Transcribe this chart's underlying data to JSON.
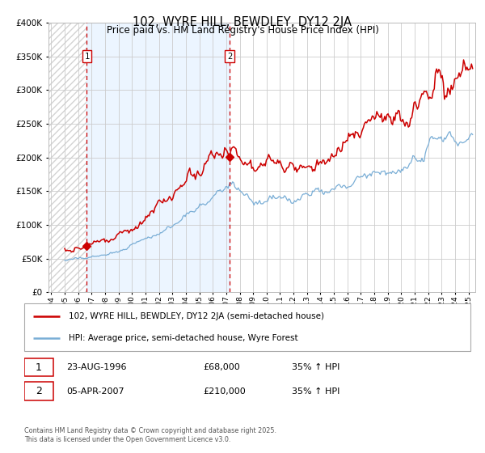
{
  "title": "102, WYRE HILL, BEWDLEY, DY12 2JA",
  "subtitle": "Price paid vs. HM Land Registry's House Price Index (HPI)",
  "legend_line1": "102, WYRE HILL, BEWDLEY, DY12 2JA (semi-detached house)",
  "legend_line2": "HPI: Average price, semi-detached house, Wyre Forest",
  "transaction1_date": "23-AUG-1996",
  "transaction1_price": "£68,000",
  "transaction1_hpi": "35% ↑ HPI",
  "transaction2_date": "05-APR-2007",
  "transaction2_price": "£210,000",
  "transaction2_hpi": "35% ↑ HPI",
  "footer": "Contains HM Land Registry data © Crown copyright and database right 2025.\nThis data is licensed under the Open Government Licence v3.0.",
  "red_line_color": "#cc0000",
  "blue_line_color": "#7aaed6",
  "bg_shaded_color": "#ddeeff",
  "dashed_line_color": "#cc0000",
  "grid_color": "#cccccc",
  "ylim": [
    0,
    400000
  ],
  "yticks": [
    0,
    50000,
    100000,
    150000,
    200000,
    250000,
    300000,
    350000,
    400000
  ],
  "sale1_year": 1996.65,
  "sale1_price": 68000,
  "sale2_year": 2007.26,
  "sale2_price": 210000,
  "start_year": 1993.8,
  "end_year": 2025.5
}
